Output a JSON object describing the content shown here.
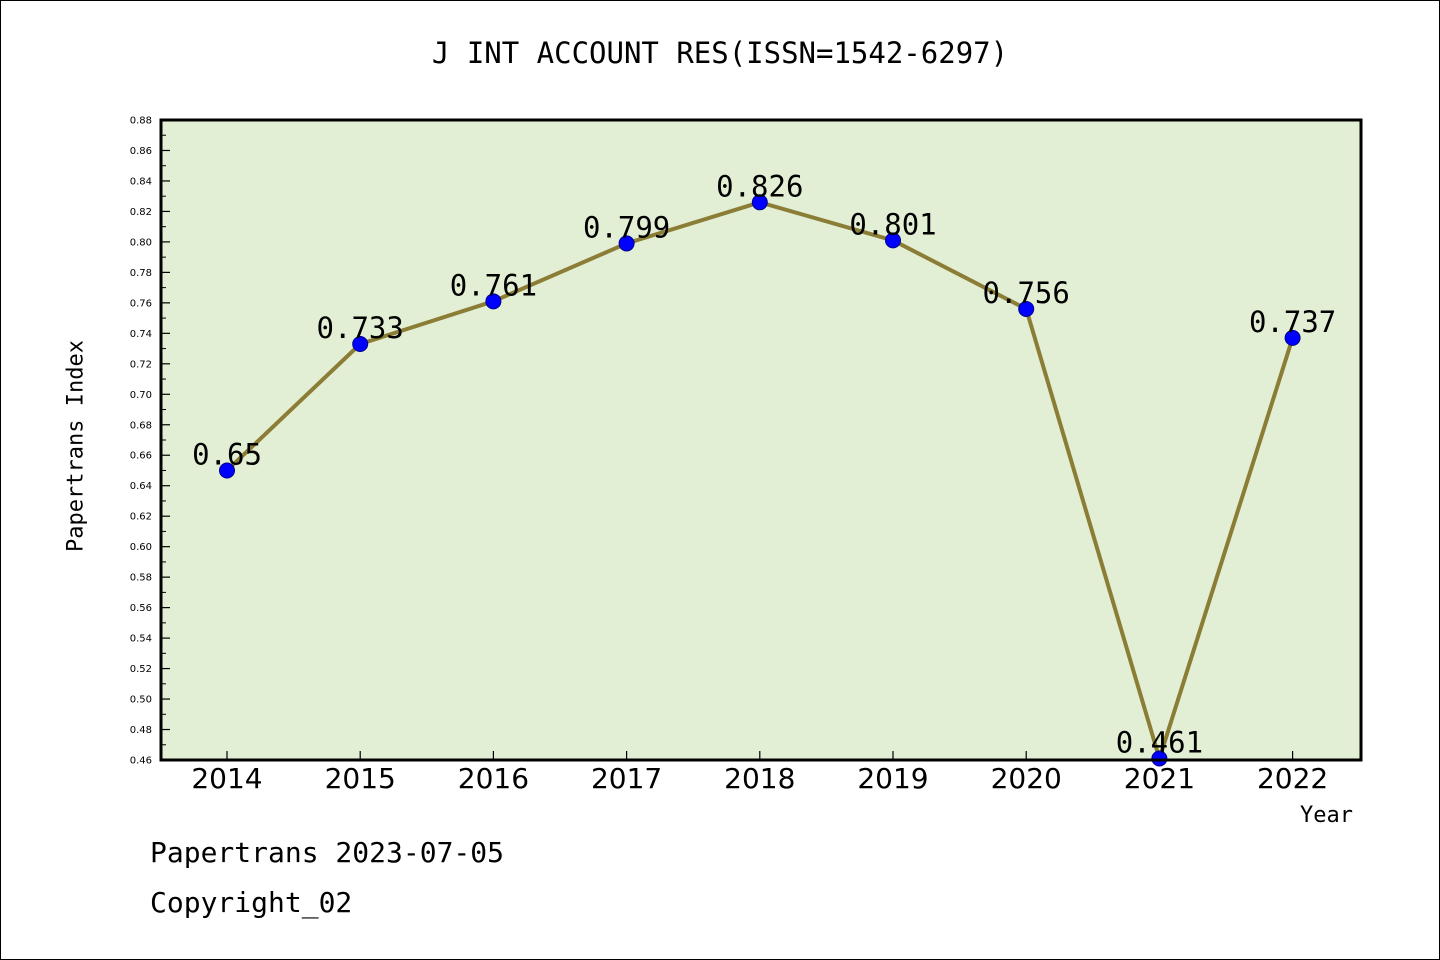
{
  "chart_data": {
    "type": "line",
    "title": "J INT ACCOUNT RES(ISSN=1542-6297)",
    "xlabel": "Year",
    "ylabel": "Papertrans Index",
    "categories": [
      "2014",
      "2015",
      "2016",
      "2017",
      "2018",
      "2019",
      "2020",
      "2021",
      "2022"
    ],
    "values": [
      0.65,
      0.733,
      0.761,
      0.799,
      0.826,
      0.801,
      0.756,
      0.461,
      0.737
    ],
    "data_labels": [
      "0.65",
      "0.733",
      "0.761",
      "0.799",
      "0.826",
      "0.801",
      "0.756",
      "0.461",
      "0.737"
    ],
    "ylim": [
      0.46,
      0.88
    ],
    "y_ticks": [
      "0.46",
      "0.48",
      "0.50",
      "0.52",
      "0.54",
      "0.56",
      "0.58",
      "0.60",
      "0.62",
      "0.64",
      "0.66",
      "0.68",
      "0.70",
      "0.72",
      "0.74",
      "0.76",
      "0.78",
      "0.80",
      "0.82",
      "0.84",
      "0.86",
      "0.88"
    ],
    "grid": false,
    "line_color": "#8b7d35",
    "marker_color": "#0000ff",
    "plot_background": "#e2efd4"
  },
  "footer": {
    "line1": "Papertrans 2023-07-05",
    "line2": "Copyright_02"
  }
}
